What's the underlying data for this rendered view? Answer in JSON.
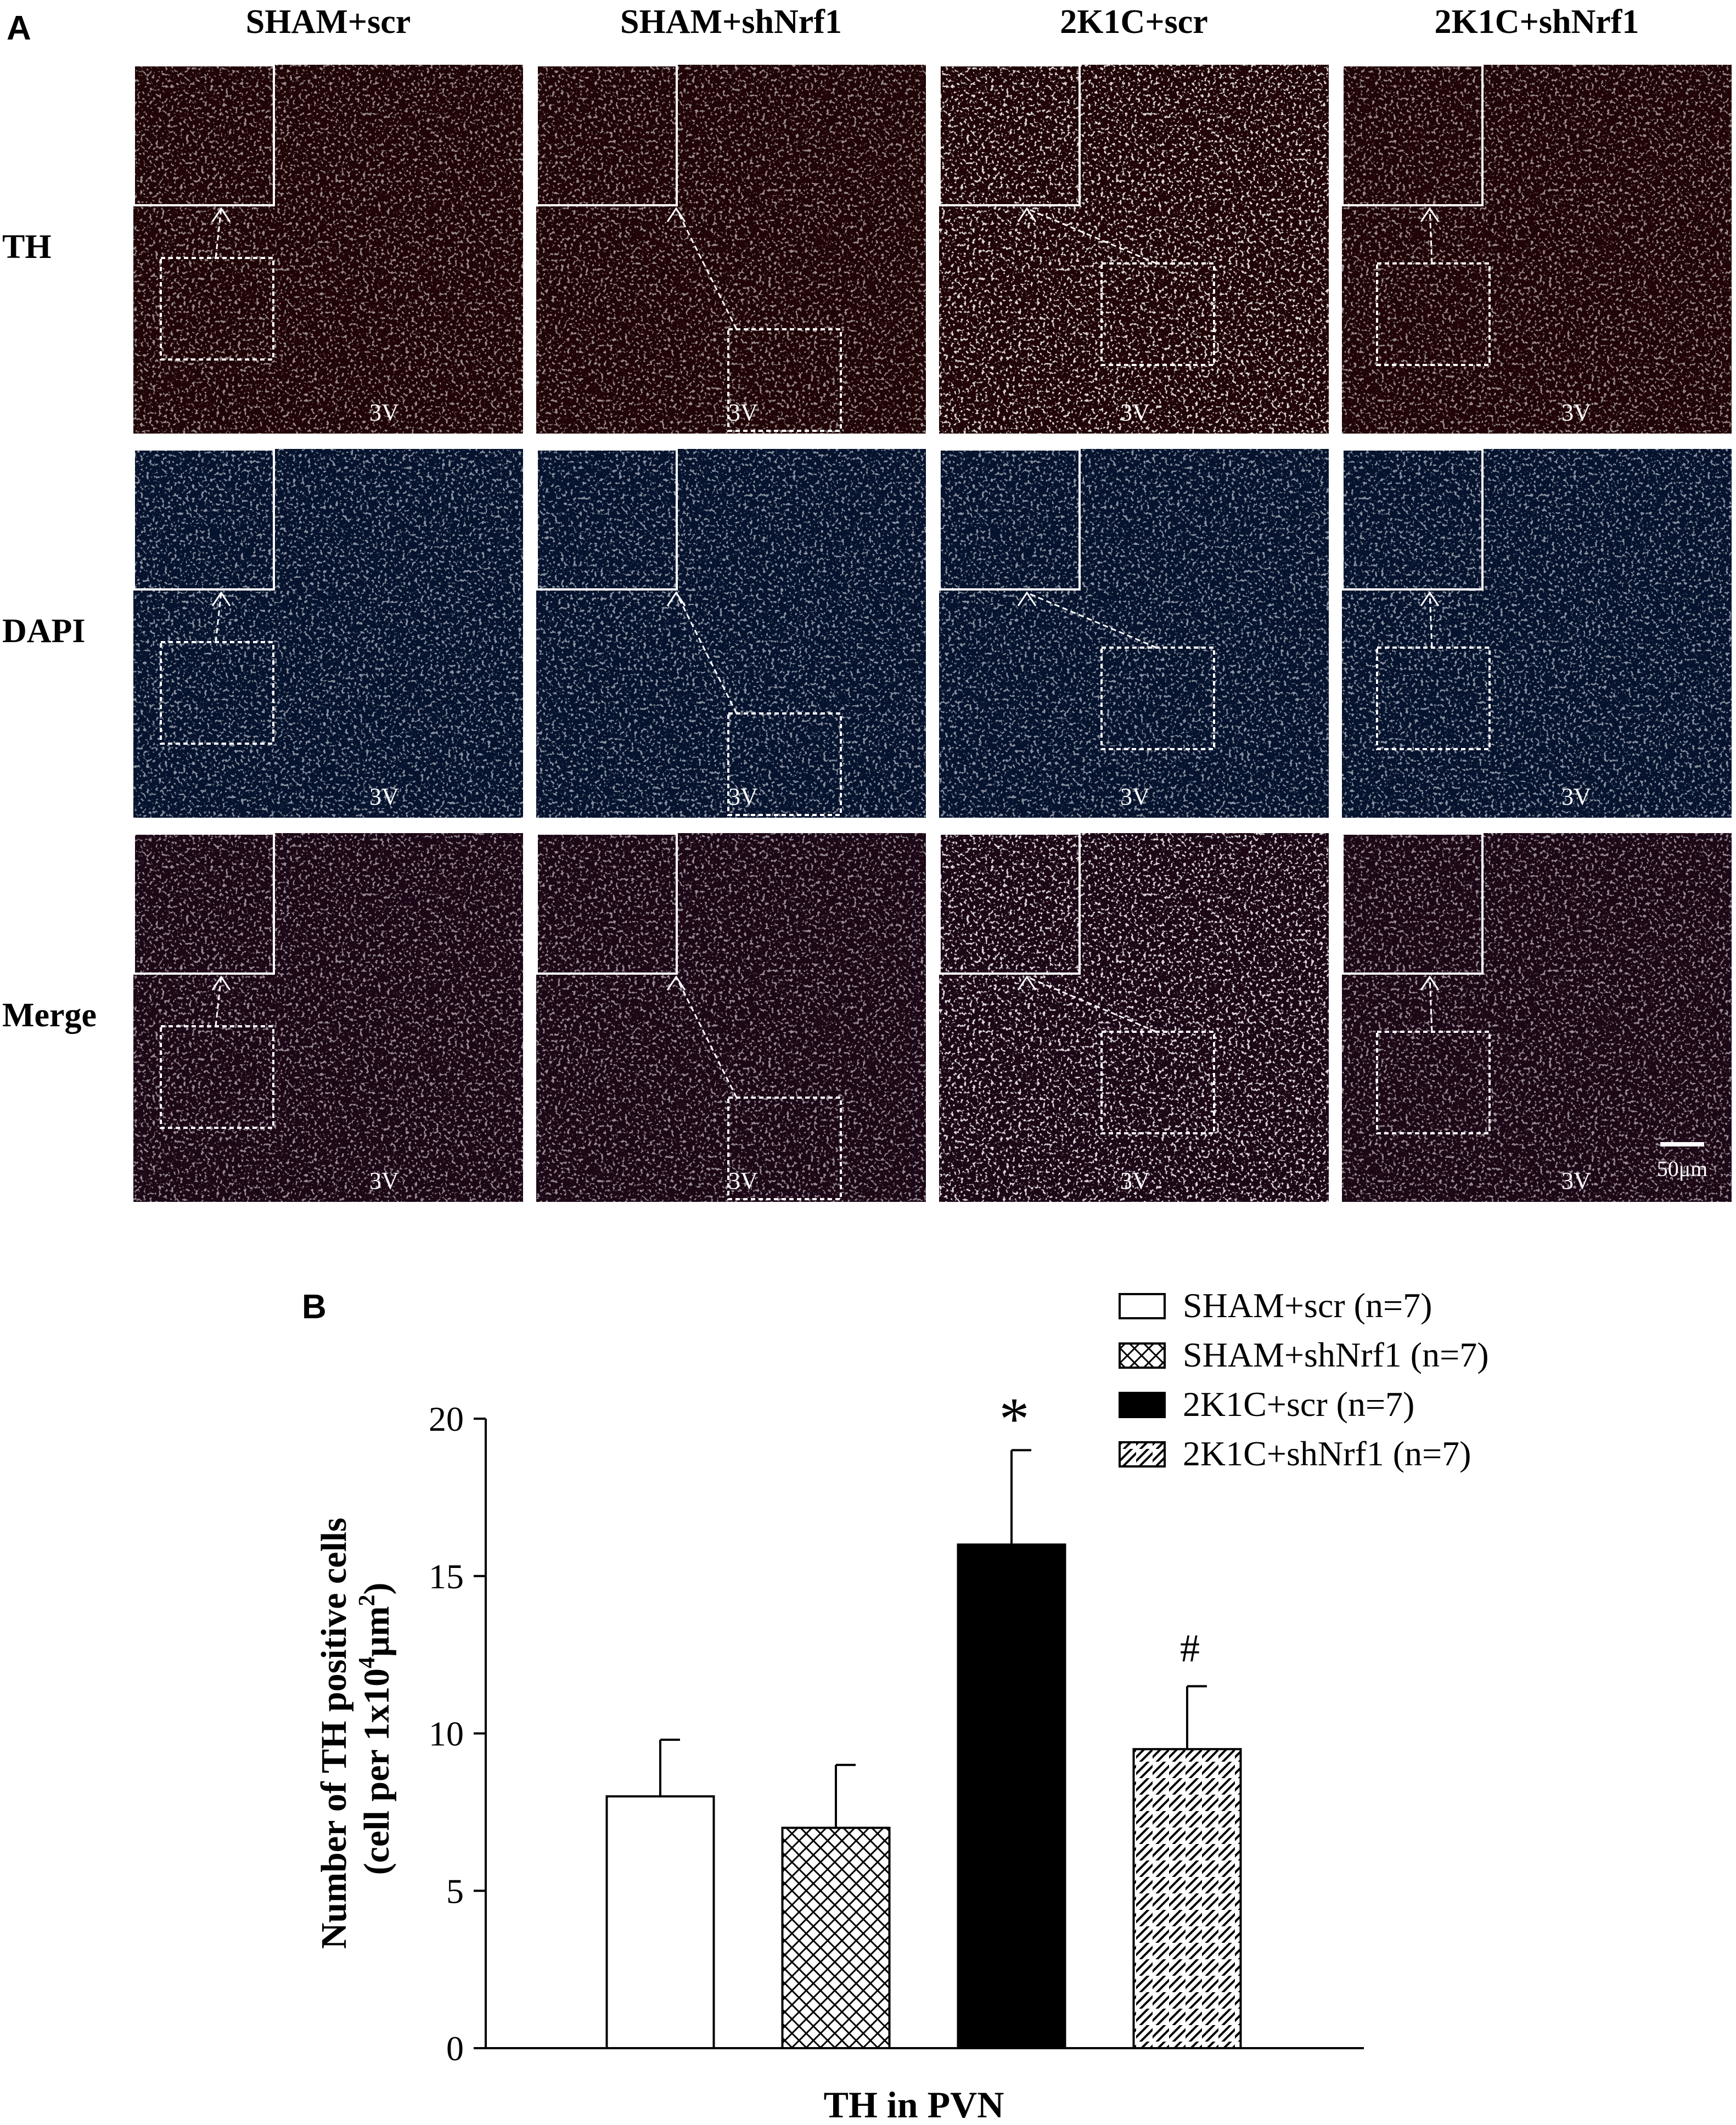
{
  "panel_a": {
    "label": "A",
    "columns": [
      "SHAM+scr",
      "SHAM+shNrf1",
      "2K1C+scr",
      "2K1C+shNrf1"
    ],
    "rows": [
      "TH",
      "DAPI",
      "Merge"
    ],
    "region_label": "3V",
    "scale_bar_label": "50μm",
    "channel_colors": {
      "TH": "#e01818",
      "DAPI": "#3a78e8",
      "Merge": "#d01a36"
    }
  },
  "chart_data": {
    "type": "bar",
    "panel_label": "B",
    "categories": [
      "SHAM+scr",
      "SHAM+shNrf1",
      "2K1C+scr",
      "2K1C+shNrf1"
    ],
    "values": [
      8.0,
      7.0,
      16.0,
      9.5
    ],
    "errors": [
      1.8,
      2.0,
      3.0,
      2.0
    ],
    "fills": [
      "white",
      "crosshatch",
      "black",
      "diagonal"
    ],
    "annotations": [
      "",
      "",
      "*",
      "#"
    ],
    "legend": [
      "SHAM+scr (n=7)",
      "SHAM+shNrf1 (n=7)",
      "2K1C+scr (n=7)",
      "2K1C+shNrf1 (n=7)"
    ],
    "legend_position": "top-right",
    "ylabel_line1": "Number of TH positive cells",
    "ylabel_line2_pre": "(cell per 1x10",
    "ylabel_sup1": "4",
    "ylabel_mid": "μm",
    "ylabel_sup2": "2",
    "ylabel_post": ")",
    "xlabel": "TH in PVN",
    "ylim": [
      0,
      20
    ],
    "yticks": [
      0,
      5,
      10,
      15,
      20
    ],
    "grid": false
  }
}
